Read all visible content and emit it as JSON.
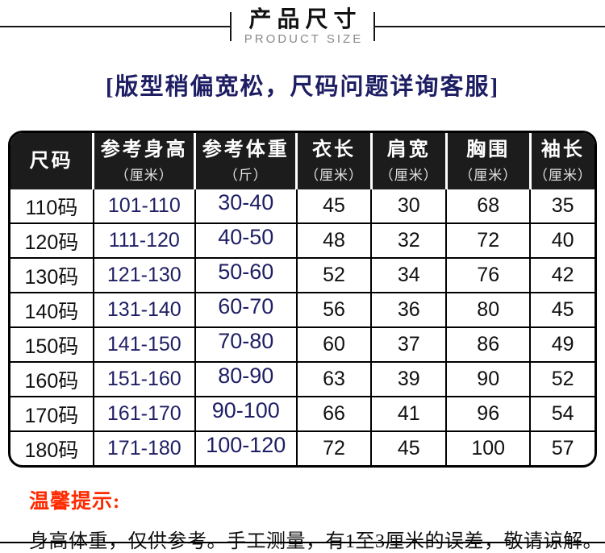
{
  "header": {
    "title_cn": "产品尺寸",
    "title_en": "PRODUCT SIZE"
  },
  "notice": {
    "text": "[版型稍偏宽松，尺码问题详询客服]"
  },
  "table": {
    "columns": [
      {
        "label": "尺码",
        "unit": ""
      },
      {
        "label": "参考身高",
        "unit": "（厘米）"
      },
      {
        "label": "参考体重",
        "unit": "（斤）"
      },
      {
        "label": "衣长",
        "unit": "（厘米）"
      },
      {
        "label": "肩宽",
        "unit": "（厘米）"
      },
      {
        "label": "胸围",
        "unit": "（厘米）"
      },
      {
        "label": "袖长",
        "unit": "（厘米）"
      }
    ],
    "rows": [
      [
        "110码",
        "101-110",
        "30-40",
        "45",
        "30",
        "68",
        "35"
      ],
      [
        "120码",
        "111-120",
        "40-50",
        "48",
        "32",
        "72",
        "40"
      ],
      [
        "130码",
        "121-130",
        "50-60",
        "52",
        "34",
        "76",
        "42"
      ],
      [
        "140码",
        "131-140",
        "60-70",
        "56",
        "36",
        "80",
        "45"
      ],
      [
        "150码",
        "141-150",
        "70-80",
        "60",
        "37",
        "86",
        "49"
      ],
      [
        "160码",
        "151-160",
        "80-90",
        "63",
        "39",
        "90",
        "52"
      ],
      [
        "170码",
        "161-170",
        "90-100",
        "66",
        "41",
        "96",
        "54"
      ],
      [
        "180码",
        "171-180",
        "100-120",
        "72",
        "45",
        "100",
        "57"
      ]
    ]
  },
  "footer": {
    "tip_label": "温馨提示:",
    "note": "身高体重，仅供参考。手工测量，有1至3厘米的误差，敬请谅解。"
  },
  "colors": {
    "navy_text": "#1e1e64",
    "red_tip": "#ff2a00",
    "header_bg": "#1c1c1c"
  }
}
